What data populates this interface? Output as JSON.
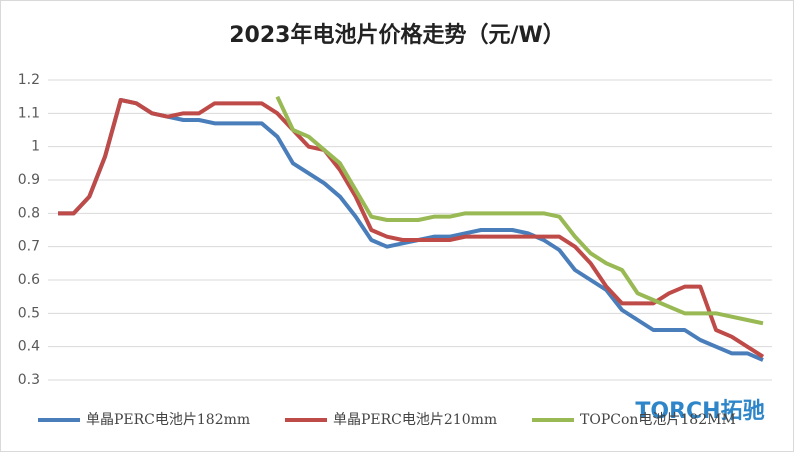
{
  "chart_data": {
    "type": "line",
    "title": "2023年电池片价格走势（元/W）",
    "categories": [
      null,
      null,
      null,
      null,
      null,
      null,
      null,
      null,
      null,
      null,
      null,
      null,
      null,
      null,
      null,
      null,
      null,
      null,
      null,
      null,
      null,
      null,
      null,
      null,
      null,
      null,
      null,
      null,
      null,
      null,
      null,
      null,
      null,
      null,
      null,
      null,
      null,
      null,
      null,
      null,
      null,
      null,
      null,
      null,
      null,
      null
    ],
    "series": [
      {
        "name": "单晶PERC电池片182mm",
        "color": "#4a7ebb",
        "values": [
          0.8,
          0.8,
          0.85,
          0.97,
          1.14,
          1.13,
          1.1,
          1.09,
          1.08,
          1.08,
          1.07,
          1.07,
          1.07,
          1.07,
          1.03,
          0.95,
          0.92,
          0.89,
          0.85,
          0.79,
          0.72,
          0.7,
          0.71,
          0.72,
          0.73,
          0.73,
          0.74,
          0.75,
          0.75,
          0.75,
          0.74,
          0.72,
          0.69,
          0.63,
          0.6,
          0.57,
          0.51,
          0.48,
          0.45,
          0.45,
          0.45,
          0.42,
          0.4,
          0.38,
          0.38,
          0.36
        ]
      },
      {
        "name": "单晶PERC电池片210mm",
        "color": "#be4b48",
        "values": [
          0.8,
          0.8,
          0.85,
          0.97,
          1.14,
          1.13,
          1.1,
          1.09,
          1.1,
          1.1,
          1.13,
          1.13,
          1.13,
          1.13,
          1.1,
          1.05,
          1.0,
          0.99,
          0.93,
          0.85,
          0.75,
          0.73,
          0.72,
          0.72,
          0.72,
          0.72,
          0.73,
          0.73,
          0.73,
          0.73,
          0.73,
          0.73,
          0.73,
          0.7,
          0.65,
          0.58,
          0.53,
          0.53,
          0.53,
          0.56,
          0.58,
          0.58,
          0.45,
          0.43,
          0.4,
          0.37
        ]
      },
      {
        "name": "TOPCon电池片182MM",
        "color": "#98b954",
        "values": [
          null,
          null,
          null,
          null,
          null,
          null,
          null,
          null,
          null,
          null,
          null,
          null,
          null,
          null,
          1.15,
          1.05,
          1.03,
          0.99,
          0.95,
          0.87,
          0.79,
          0.78,
          0.78,
          0.78,
          0.79,
          0.79,
          0.8,
          0.8,
          0.8,
          0.8,
          0.8,
          0.8,
          0.79,
          0.73,
          0.68,
          0.65,
          0.63,
          0.56,
          0.54,
          0.52,
          0.5,
          0.5,
          0.5,
          0.49,
          0.48,
          0.47
        ]
      }
    ],
    "ylim": [
      0.3,
      1.2
    ],
    "yticks": [
      0.3,
      0.4,
      0.5,
      0.6,
      0.7,
      0.8,
      0.9,
      1,
      1.1,
      1.2
    ],
    "grid": true,
    "legend": "bottom",
    "logo": "TORCH拓驰"
  }
}
